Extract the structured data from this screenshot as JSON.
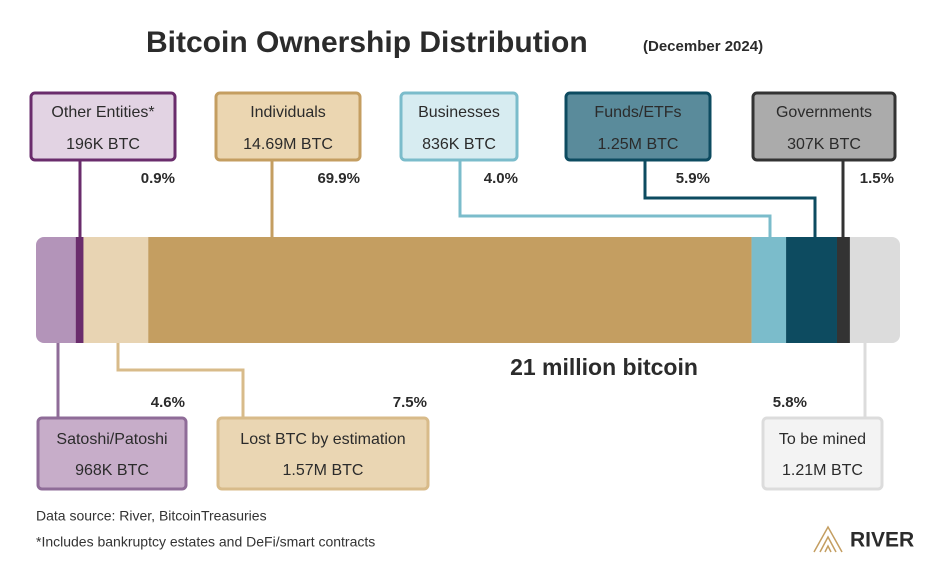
{
  "chart_data": {
    "type": "stacked-bar",
    "title": "Bitcoin Ownership Distribution",
    "subtitle": "(December 2024)",
    "total_label": "21 million bitcoin",
    "segments": [
      {
        "name": "Satoshi/Patoshi",
        "amount": "968K BTC",
        "value": 4.6,
        "value_label": "4.6%",
        "color": "#b394b9",
        "box_color": "#c7adc9",
        "border_color": "#8f6c98"
      },
      {
        "name": "Other Entities*",
        "amount": "196K BTC",
        "value": 0.9,
        "value_label": "0.9%",
        "color": "#6a2c6c",
        "box_color": "#e2d3e3",
        "border_color": "#6a2c6c"
      },
      {
        "name": "Lost BTC by estimation",
        "amount": "1.57M BTC",
        "value": 7.5,
        "value_label": "7.5%",
        "color": "#e8d4b3",
        "box_color": "#ead6b3",
        "border_color": "#d8bb8a"
      },
      {
        "name": "Individuals",
        "amount": "14.69M BTC",
        "value": 69.9,
        "value_label": "69.9%",
        "color": "#c49e61",
        "box_color": "#ebd6b1",
        "border_color": "#c49e61"
      },
      {
        "name": "Businesses",
        "amount": "836K BTC",
        "value": 4.0,
        "value_label": "4.0%",
        "color": "#7bbccb",
        "box_color": "#d7ecf1",
        "border_color": "#7bbccb"
      },
      {
        "name": "Funds/ETFs",
        "amount": "1.25M BTC",
        "value": 5.9,
        "value_label": "5.9%",
        "color": "#0d4b60",
        "box_color": "#5a8b9b",
        "border_color": "#0d4b60"
      },
      {
        "name": "Governments",
        "amount": "307K BTC",
        "value": 1.5,
        "value_label": "1.5%",
        "color": "#333333",
        "box_color": "#ababab",
        "border_color": "#333333"
      },
      {
        "name": "To be mined",
        "amount": "1.21M BTC",
        "value": 5.8,
        "value_label": "5.8%",
        "color": "#dcdcdc",
        "box_color": "#f3f3f3",
        "border_color": "#dcdcdc"
      }
    ],
    "notes": [
      "Data source: River, BitcoinTreasuries",
      "*Includes bankruptcy estates and DeFi/smart contracts"
    ],
    "logo": "RIVER"
  }
}
